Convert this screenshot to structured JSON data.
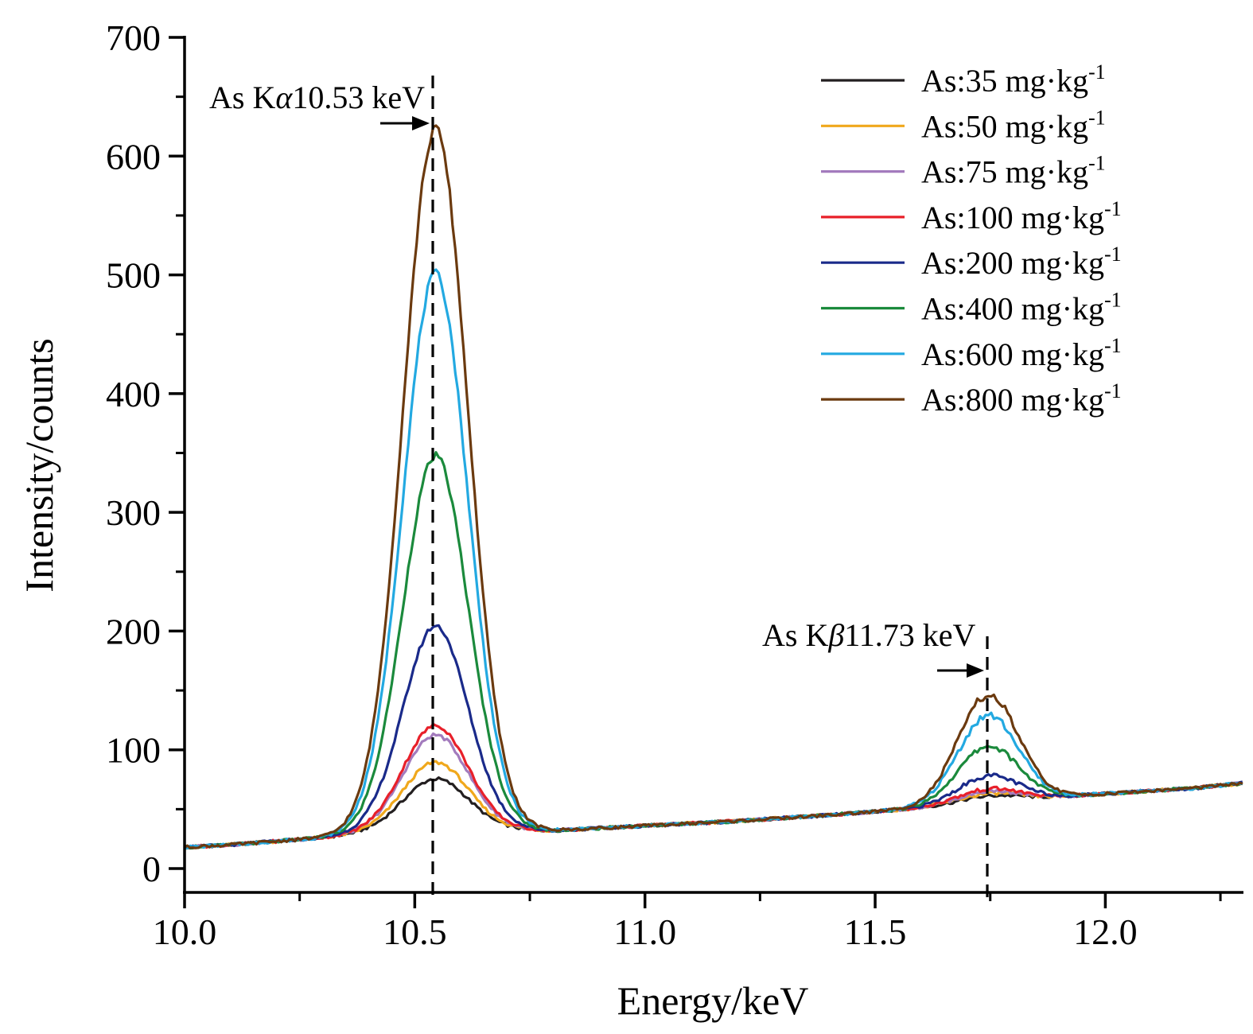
{
  "chart_data": {
    "type": "line",
    "title": "",
    "xlabel": "Energy/keV",
    "ylabel": "Intensity/counts",
    "xlim": [
      10.0,
      12.3
    ],
    "ylim": [
      -20,
      700
    ],
    "xticks": [
      10.0,
      10.5,
      11.0,
      11.5,
      12.0
    ],
    "xtick_labels": [
      "10.0",
      "10.5",
      "11.0",
      "11.5",
      "12.0"
    ],
    "yticks": [
      0,
      100,
      200,
      300,
      400,
      500,
      600,
      700
    ],
    "ytick_labels": [
      "0",
      "100",
      "200",
      "300",
      "400",
      "500",
      "600",
      "700"
    ],
    "grid": false,
    "legend_position": "top-right",
    "legend_unit": "mg·kg",
    "legend_unit_superscript": "-1",
    "annotations": [
      {
        "label": "As K",
        "greek": "α",
        "value_text": "10.53 keV",
        "x": 10.53
      },
      {
        "label": "As K",
        "greek": "β",
        "value_text": "11.73 keV",
        "x": 11.73
      }
    ],
    "peaks": {
      "ka": {
        "x": 10.545,
        "sigma": 0.07
      },
      "kb": {
        "x": 11.745,
        "sigma": 0.065
      }
    },
    "baseline": [
      [
        10.0,
        18
      ],
      [
        10.1,
        20
      ],
      [
        10.2,
        23
      ],
      [
        10.3,
        26
      ],
      [
        10.4,
        30
      ],
      [
        10.5,
        32
      ],
      [
        10.6,
        33
      ],
      [
        10.7,
        33
      ],
      [
        10.8,
        32
      ],
      [
        10.9,
        34
      ],
      [
        11.0,
        36
      ],
      [
        11.2,
        40
      ],
      [
        11.4,
        45
      ],
      [
        11.6,
        51
      ],
      [
        11.8,
        58
      ],
      [
        12.0,
        63
      ],
      [
        12.2,
        68
      ],
      [
        12.3,
        72
      ]
    ],
    "series": [
      {
        "name": "As:35 mg·kg-1",
        "legend_label": "As:35 mg·kg",
        "color": "#231f20",
        "ka_height": 43,
        "kb_height": 5
      },
      {
        "name": "As:50 mg·kg-1",
        "legend_label": "As:50 mg·kg",
        "color": "#f0a81c",
        "ka_height": 57,
        "kb_height": 7
      },
      {
        "name": "As:75 mg·kg-1",
        "legend_label": "As:75 mg·kg",
        "color": "#a37bbd",
        "ka_height": 80,
        "kb_height": 9
      },
      {
        "name": "As:100 mg·kg-1",
        "legend_label": "As:100 mg·kg",
        "color": "#e8202a",
        "ka_height": 88,
        "kb_height": 11
      },
      {
        "name": "As:200 mg·kg-1",
        "legend_label": "As:200 mg·kg",
        "color": "#1a2a8a",
        "ka_height": 172,
        "kb_height": 22
      },
      {
        "name": "As:400 mg·kg-1",
        "legend_label": "As:400 mg·kg",
        "color": "#1b8a3c",
        "ka_height": 315,
        "kb_height": 47
      },
      {
        "name": "As:600 mg·kg-1",
        "legend_label": "As:600 mg·kg",
        "color": "#23a9e1",
        "ka_height": 468,
        "kb_height": 73
      },
      {
        "name": "As:800 mg·kg-1",
        "legend_label": "As:800 mg·kg",
        "color": "#6b3a0f",
        "ka_height": 590,
        "kb_height": 90
      }
    ]
  }
}
